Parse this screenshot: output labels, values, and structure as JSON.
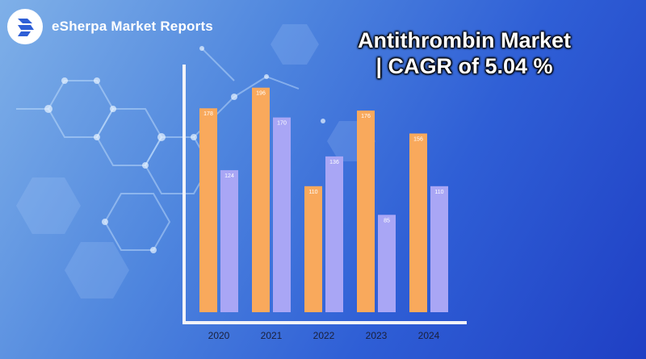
{
  "brand": {
    "name": "eSherpa Market Reports",
    "logo_icon": "esherpa-logo-icon"
  },
  "headline": {
    "line1": "Antithrombin Market",
    "line2": "| CAGR of 5.04 %"
  },
  "colors": {
    "series_a": "#f9a95c",
    "series_b": "#a9a6f5",
    "axis": "#f3f3f8"
  },
  "chart_data": {
    "type": "bar",
    "title": "",
    "xlabel": "",
    "ylabel": "",
    "categories": [
      "2020",
      "2021",
      "2022",
      "2023",
      "2024"
    ],
    "series": [
      {
        "values": [
          178,
          196,
          110,
          176,
          156
        ]
      },
      {
        "values": [
          124,
          170,
          136,
          85,
          110
        ]
      }
    ],
    "ylim": [
      0,
      230
    ],
    "grid": false,
    "legend": "none"
  }
}
